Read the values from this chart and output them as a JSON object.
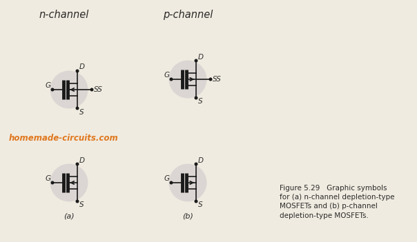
{
  "title_nchannel": "n-channel",
  "title_pchannel": "p-channel",
  "watermark": "homemade-circuits.com",
  "watermark_color": "#e07820",
  "figure_caption": "Figure 5.29   Graphic symbols\nfor (a) n-channel depletion-type\nMOSFETs and (b) p-channel\ndepletion-type MOSFETs.",
  "bg_color": "#f0ebe0",
  "line_color": "#1a1a1a",
  "circle_bg": "#d0cccc",
  "label_color": "#2a2a2a",
  "label_fontsize": 7.5,
  "title_fontsize": 10.5,
  "caption_fontsize": 7.5,
  "lw_thin": 1.2,
  "lw_thick": 3.5,
  "dot_r": 1.8,
  "sym_scale": 1.0
}
